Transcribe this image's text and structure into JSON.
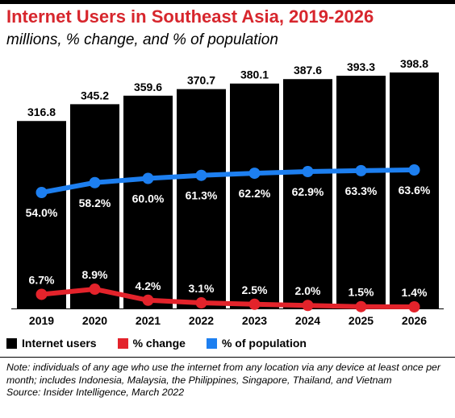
{
  "header": {
    "title": "Internet Users in Southeast Asia, 2019-2026",
    "subtitle": "millions, % change, and % of population"
  },
  "chart_data": {
    "type": "bar",
    "categories": [
      "2019",
      "2020",
      "2021",
      "2022",
      "2023",
      "2024",
      "2025",
      "2026"
    ],
    "series": [
      {
        "name": "Internet users",
        "chart_type": "bar",
        "color": "#000000",
        "values": [
          316.8,
          345.2,
          359.6,
          370.7,
          380.1,
          387.6,
          393.3,
          398.8
        ],
        "labels": [
          "316.8",
          "345.2",
          "359.6",
          "370.7",
          "380.1",
          "387.6",
          "393.3",
          "398.8"
        ]
      },
      {
        "name": "% change",
        "chart_type": "line",
        "color": "#e3232b",
        "values": [
          6.7,
          8.9,
          4.2,
          3.1,
          2.5,
          2.0,
          1.5,
          1.4
        ],
        "labels": [
          "6.7%",
          "8.9%",
          "4.2%",
          "3.1%",
          "2.5%",
          "2.0%",
          "1.5%",
          "1.4%"
        ]
      },
      {
        "name": "% of population",
        "chart_type": "line",
        "color": "#1d7ff0",
        "values": [
          54.0,
          58.2,
          60.0,
          61.3,
          62.2,
          62.9,
          63.3,
          63.6
        ],
        "labels": [
          "54.0%",
          "58.2%",
          "60.0%",
          "61.3%",
          "62.2%",
          "62.9%",
          "63.3%",
          "63.6%"
        ]
      }
    ],
    "legend_position": "bottom",
    "grid": false
  },
  "legend": {
    "items": [
      {
        "label": "Internet users",
        "color": "#000000"
      },
      {
        "label": "% change",
        "color": "#e3232b"
      },
      {
        "label": "% of population",
        "color": "#1d7ff0"
      }
    ]
  },
  "footer": {
    "note": "Note: individuals of any age who use the internet from any location via any device at least once per month; includes Indonesia, Malaysia, the Philippines, Singapore, Thailand, and Vietnam",
    "source": "Source: Insider Intelligence, March 2022"
  }
}
